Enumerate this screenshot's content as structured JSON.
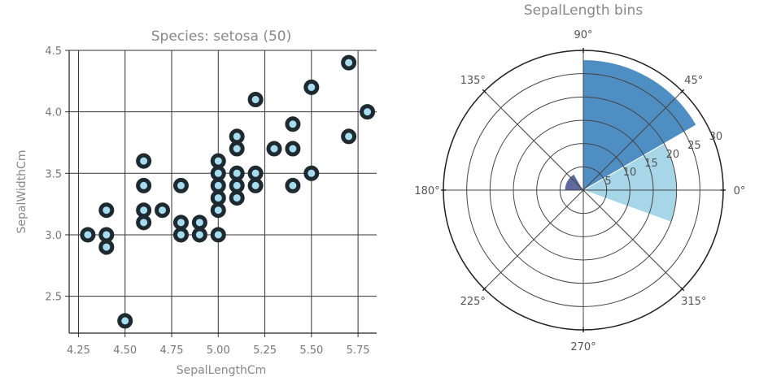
{
  "chart_data": [
    {
      "type": "scatter",
      "title": "Species: setosa (50)",
      "xlabel": "SepalLengthCm",
      "ylabel": "SepalWidthCm",
      "xlim": [
        4.2,
        5.85
      ],
      "ylim": [
        2.2,
        4.5
      ],
      "xticks": [
        "4.25",
        "4.50",
        "4.75",
        "5.00",
        "5.25",
        "5.50",
        "5.75"
      ],
      "yticks": [
        "2.5",
        "3.0",
        "3.5",
        "4.0",
        "4.5"
      ],
      "grid": true,
      "marker_face": "#a6dcef",
      "marker_edge": "#1f2a30",
      "points": [
        [
          4.3,
          3.0
        ],
        [
          4.4,
          2.9
        ],
        [
          4.4,
          3.0
        ],
        [
          4.4,
          3.2
        ],
        [
          4.5,
          2.3
        ],
        [
          4.6,
          3.1
        ],
        [
          4.6,
          3.2
        ],
        [
          4.6,
          3.4
        ],
        [
          4.6,
          3.6
        ],
        [
          4.7,
          3.2
        ],
        [
          4.8,
          3.0
        ],
        [
          4.8,
          3.1
        ],
        [
          4.8,
          3.4
        ],
        [
          4.9,
          3.0
        ],
        [
          4.9,
          3.1
        ],
        [
          5.0,
          3.0
        ],
        [
          5.0,
          3.2
        ],
        [
          5.0,
          3.3
        ],
        [
          5.0,
          3.4
        ],
        [
          5.0,
          3.5
        ],
        [
          5.0,
          3.6
        ],
        [
          5.1,
          3.3
        ],
        [
          5.1,
          3.4
        ],
        [
          5.1,
          3.5
        ],
        [
          5.1,
          3.7
        ],
        [
          5.1,
          3.8
        ],
        [
          5.2,
          3.4
        ],
        [
          5.2,
          3.5
        ],
        [
          5.2,
          4.1
        ],
        [
          5.3,
          3.7
        ],
        [
          5.4,
          3.4
        ],
        [
          5.4,
          3.7
        ],
        [
          5.4,
          3.9
        ],
        [
          5.5,
          3.5
        ],
        [
          5.5,
          4.2
        ],
        [
          5.7,
          3.8
        ],
        [
          5.7,
          4.4
        ],
        [
          5.8,
          4.0
        ]
      ]
    },
    {
      "type": "polar-bar",
      "title": "SepalLength bins",
      "angle_labels": [
        "0°",
        "45°",
        "90°",
        "135°",
        "180°",
        "225°",
        "270°",
        "315°"
      ],
      "radial_ticks": [
        "5",
        "10",
        "15",
        "20",
        "25",
        "30"
      ],
      "rmax": 30,
      "bins": [
        {
          "theta_start": -20,
          "theta_end": 0,
          "value": 20,
          "color": "#a6d6e7"
        },
        {
          "theta_start": 0,
          "theta_end": 30,
          "value": 20,
          "color": "#a6d6e7"
        },
        {
          "theta_start": 30,
          "theta_end": 90,
          "value": 28,
          "color": "#4f8ec2"
        },
        {
          "theta_start": 120,
          "theta_end": 180,
          "value": 4,
          "color": "#5e6aa0"
        }
      ]
    }
  ]
}
